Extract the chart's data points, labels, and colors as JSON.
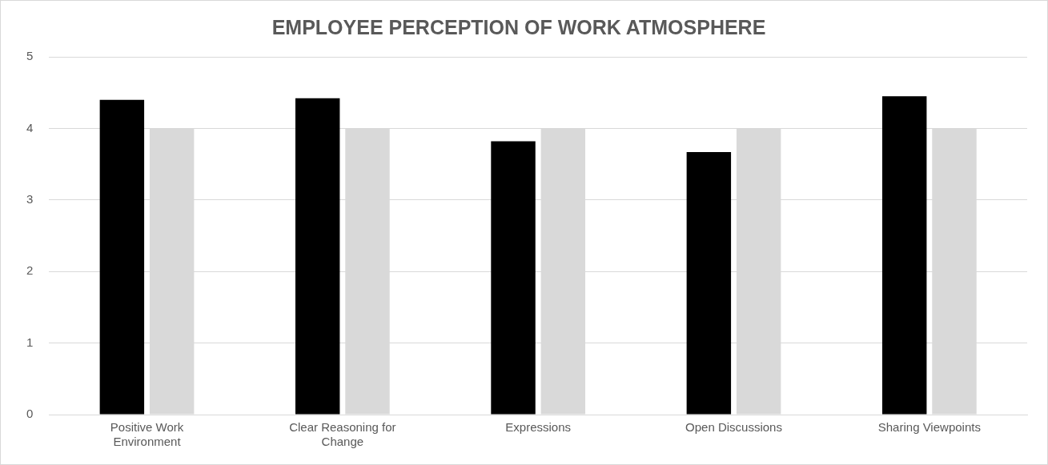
{
  "chart_data": {
    "type": "bar",
    "title": "EMPLOYEE PERCEPTION OF WORK ATMOSPHERE",
    "categories": [
      "Positive Work Environment",
      "Clear Reasoning for Change",
      "Expressions",
      "Open Discussions",
      "Sharing Viewpoints"
    ],
    "series": [
      {
        "color": "#000000",
        "values": [
          4.4,
          4.42,
          3.82,
          3.67,
          4.45
        ]
      },
      {
        "color": "#d9d9d9",
        "values": [
          4,
          4,
          4,
          4,
          4
        ]
      }
    ],
    "ylim": [
      0,
      5
    ],
    "yticks": [
      0,
      1,
      2,
      3,
      4,
      5
    ],
    "grid": "y",
    "legend": false
  }
}
